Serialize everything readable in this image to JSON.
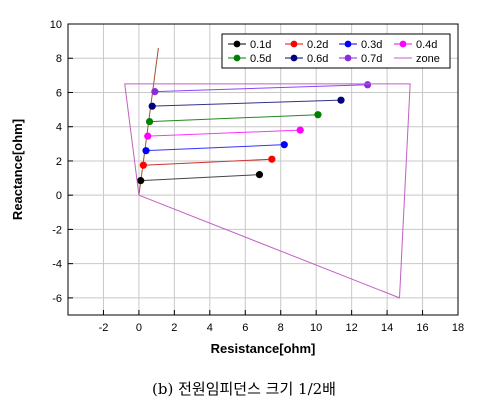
{
  "chart_data": {
    "type": "scatter",
    "xlabel": "Resistance[ohm]",
    "ylabel": "Reactance[ohm]",
    "xlim": [
      -4,
      18
    ],
    "ylim": [
      -7,
      10
    ],
    "x_ticks": [
      -2,
      0,
      2,
      4,
      6,
      8,
      10,
      12,
      14,
      16,
      18
    ],
    "y_ticks": [
      -6,
      -4,
      -2,
      0,
      2,
      4,
      6,
      8,
      10
    ],
    "grid": true,
    "legend_position": "top-right",
    "series": [
      {
        "name": "0.1d",
        "color": "#000000",
        "x": [
          6.8
        ],
        "y": [
          1.2
        ],
        "line_start": [
          0.1,
          0.85
        ],
        "line_color": "#444444"
      },
      {
        "name": "0.2d",
        "color": "#ff0000",
        "x": [
          7.5
        ],
        "y": [
          2.1
        ],
        "line_start": [
          0.25,
          1.75
        ],
        "line_color": "#cc3333"
      },
      {
        "name": "0.3d",
        "color": "#0000ff",
        "x": [
          8.2
        ],
        "y": [
          2.95
        ],
        "line_start": [
          0.4,
          2.6
        ],
        "line_color": "#3333ff"
      },
      {
        "name": "0.4d",
        "color": "#ff00ff",
        "x": [
          9.1
        ],
        "y": [
          3.8
        ],
        "line_start": [
          0.5,
          3.45
        ],
        "line_color": "#ff33ff"
      },
      {
        "name": "0.5d",
        "color": "#008000",
        "x": [
          10.1
        ],
        "y": [
          4.7
        ],
        "line_start": [
          0.6,
          4.3
        ],
        "line_color": "#228822"
      },
      {
        "name": "0.6d",
        "color": "#000080",
        "x": [
          11.4
        ],
        "y": [
          5.55
        ],
        "line_start": [
          0.75,
          5.2
        ],
        "line_color": "#333388"
      },
      {
        "name": "0.7d",
        "color": "#8a2be2",
        "x": [
          12.9
        ],
        "y": [
          6.45
        ],
        "line_start": [
          0.9,
          6.05
        ],
        "line_color": "#8844ff"
      },
      {
        "name": "zone",
        "color": "#c060c0",
        "type": "line",
        "x": [
          0,
          -0.8,
          15.3,
          14.7,
          0
        ],
        "y": [
          0,
          6.5,
          6.5,
          -6,
          0
        ]
      }
    ],
    "characteristic_line": {
      "color": "#a0522d",
      "x": [
        0,
        1.1
      ],
      "y": [
        0,
        8.6
      ]
    }
  },
  "caption": "(b) 전원임피던스 크기 1/2배"
}
